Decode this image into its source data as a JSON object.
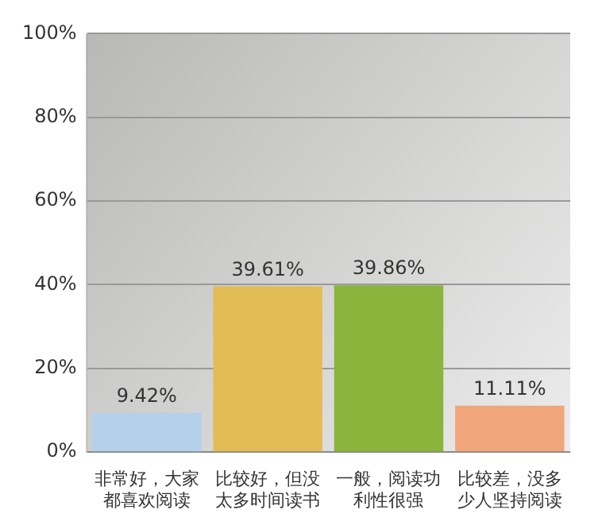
{
  "chart_data": {
    "type": "bar",
    "categories": [
      "非常好，大家都喜欢阅读",
      "比较好，但没太多时间读书",
      "一般，阅读功利性很强",
      "比较差，没多少人坚持阅读"
    ],
    "values": [
      9.42,
      39.61,
      39.86,
      11.11
    ],
    "colors": [
      "#b4d0ea",
      "#e2bc55",
      "#8ab43c",
      "#f0a67a"
    ],
    "value_labels": [
      "9.42%",
      "39.61%",
      "39.86%",
      "11.11%"
    ],
    "ylim": [
      0,
      100
    ],
    "yticks": [
      {
        "value": 0,
        "label": "0%"
      },
      {
        "value": 20,
        "label": "20%"
      },
      {
        "value": 40,
        "label": "40%"
      },
      {
        "value": 60,
        "label": "60%"
      },
      {
        "value": 80,
        "label": "80%"
      },
      {
        "value": 100,
        "label": "100%"
      }
    ],
    "grid": "y",
    "legend": false
  }
}
